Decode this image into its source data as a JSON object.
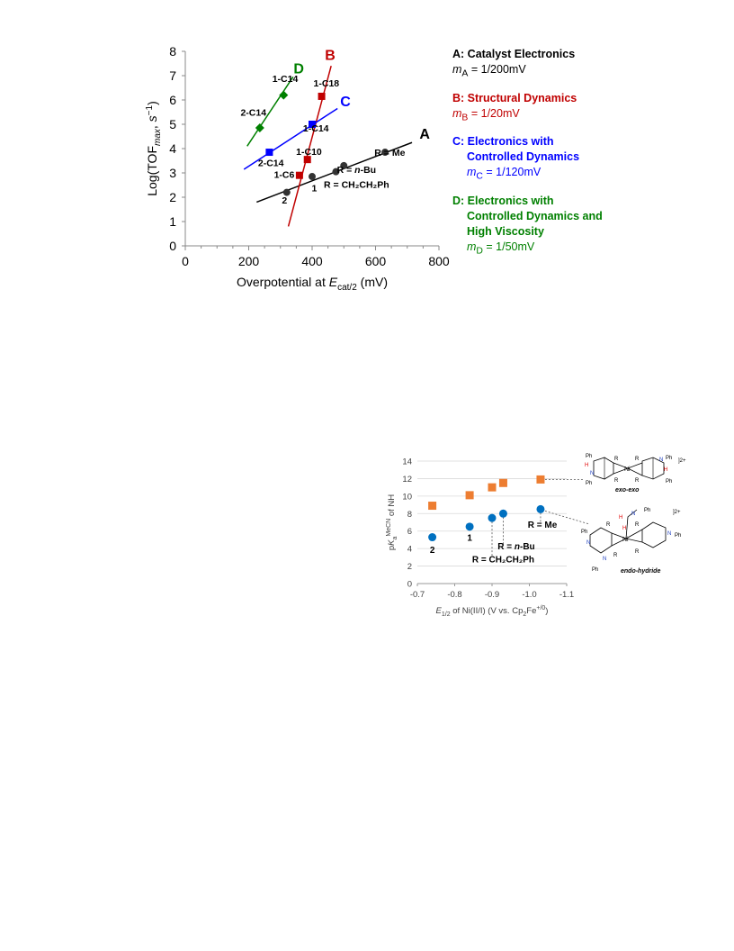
{
  "chart_data": [
    {
      "type": "scatter",
      "xlabel": "Overpotential at E",
      "xlabel_sub": "cat/2",
      "xlabel_unit": " (mV)",
      "ylabel": "Log(TOF",
      "ylabel_sub": "max",
      "ylabel_unit": ", s",
      "ylabel_sup": "−1",
      "ylabel_end": ")",
      "xlim": [
        0,
        800
      ],
      "ylim": [
        0,
        8
      ],
      "x_ticks": [
        "0",
        "200",
        "400",
        "600",
        "800"
      ],
      "y_ticks": [
        "0",
        "1",
        "2",
        "3",
        "4",
        "5",
        "6",
        "7",
        "8"
      ],
      "series": [
        {
          "name": "A",
          "color": "#000000",
          "marker": "circle",
          "points": [
            [
              320,
              2.2
            ],
            [
              400,
              2.85
            ],
            [
              475,
              3.05
            ],
            [
              500,
              3.3
            ],
            [
              630,
              3.85
            ]
          ],
          "fit": [
            [
              225,
              1.8
            ],
            [
              715,
              4.25
            ]
          ],
          "name_pos": [
            755,
            4.4
          ]
        },
        {
          "name": "B",
          "color": "#C00000",
          "marker": "square",
          "points": [
            [
              360,
              2.9
            ],
            [
              385,
              3.55
            ],
            [
              430,
              6.15
            ]
          ],
          "fit": [
            [
              325,
              0.8
            ],
            [
              460,
              7.4
            ]
          ],
          "name_pos": [
            457,
            7.65
          ]
        },
        {
          "name": "C",
          "color": "#0000FF",
          "marker": "square",
          "points": [
            [
              265,
              3.85
            ],
            [
              400,
              5.0
            ]
          ],
          "fit": [
            [
              185,
              3.15
            ],
            [
              480,
              5.65
            ]
          ],
          "name_pos": [
            505,
            5.75
          ]
        },
        {
          "name": "D",
          "color": "#008000",
          "marker": "diamond",
          "points": [
            [
              235,
              4.85
            ],
            [
              310,
              6.2
            ]
          ],
          "fit": [
            [
              195,
              4.1
            ],
            [
              340,
              6.95
            ]
          ],
          "name_pos": [
            358,
            7.1
          ]
        }
      ],
      "annotations": [
        {
          "text": "1-C14",
          "x": 315,
          "y": 6.75
        },
        {
          "text": "1-C18",
          "x": 445,
          "y": 6.55
        },
        {
          "text": "2-C14",
          "x": 215,
          "y": 5.35
        },
        {
          "text": "1-C14",
          "x": 412,
          "y": 4.7
        },
        {
          "text": "1-C10",
          "x": 390,
          "y": 3.75
        },
        {
          "text": "2-C14",
          "x": 270,
          "y": 3.28
        },
        {
          "text": "1-C6",
          "x": 312,
          "y": 2.8
        },
        {
          "text": "R = Me",
          "x": 645,
          "y": 3.7
        },
        {
          "text": "R = n-Bu",
          "x": 540,
          "y": 3.0
        },
        {
          "text": "R = CH₂CH₂Ph",
          "x": 540,
          "y": 2.38
        },
        {
          "text": "1",
          "x": 407,
          "y": 2.25
        },
        {
          "text": "2",
          "x": 313,
          "y": 1.75
        }
      ]
    },
    {
      "type": "scatter",
      "xlabel": "E",
      "xlabel_sub": "1/2",
      "xlabel_rest": " of Ni(II/I) (V vs. Cp",
      "xlabel_sub2": "2",
      "xlabel_rest2": "Fe",
      "xlabel_sup": "+/0",
      "xlabel_end": ")",
      "ylabel": "pK",
      "ylabel_sub": "a",
      "ylabel_sup": "MeCN",
      "ylabel_end": " of NH",
      "xlim": [
        -0.7,
        -1.1
      ],
      "ylim": [
        0,
        14
      ],
      "x_ticks": [
        "-0.7",
        "-0.8",
        "-0.9",
        "-1.0",
        "-1.1"
      ],
      "y_ticks": [
        "0",
        "2",
        "4",
        "6",
        "8",
        "10",
        "12",
        "14"
      ],
      "series": [
        {
          "name": "exo-exo",
          "color": "#ED7D31",
          "marker": "square",
          "x": [
            -0.74,
            -0.84,
            -0.9,
            -0.93,
            -1.03
          ],
          "values": [
            8.9,
            10.1,
            11.0,
            11.5,
            11.9
          ]
        },
        {
          "name": "endo-hydride",
          "color": "#0070C0",
          "marker": "circle",
          "x": [
            -0.74,
            -0.84,
            -0.9,
            -0.93,
            -1.03
          ],
          "values": [
            5.3,
            6.5,
            7.5,
            8.0,
            8.5
          ]
        }
      ],
      "annotations": [
        {
          "text": "2",
          "x": -0.74,
          "y": 3.5
        },
        {
          "text": "1",
          "x": -0.84,
          "y": 4.9
        },
        {
          "text": "R = Me",
          "x": -1.035,
          "y": 6.4
        },
        {
          "text": "R = n-Bu",
          "x": -0.965,
          "y": 3.9
        },
        {
          "text": "R = CH₂CH₂Ph",
          "x": -0.93,
          "y": 2.4
        }
      ],
      "structure_labels": {
        "exo": "exo-exo",
        "endo": "endo-hydride",
        "charge": "2+"
      }
    }
  ],
  "legend": [
    {
      "head": "A: Catalyst Electronics",
      "m_sub": "A",
      "m_val": " = 1/200mV",
      "color": "#000000",
      "lines": []
    },
    {
      "head": "B: Structural Dynamics",
      "m_sub": "B",
      "m_val": " = 1/20mV",
      "color": "#C00000",
      "lines": []
    },
    {
      "head": "C: Electronics with",
      "m_sub": "C",
      "m_val": " = 1/120mV",
      "color": "#0000FF",
      "lines": [
        "Controlled Dynamics"
      ]
    },
    {
      "head": "D: Electronics with",
      "m_sub": "D",
      "m_val": " = 1/50mV",
      "color": "#008000",
      "lines": [
        "Controlled Dynamics and",
        "High Viscosity"
      ]
    }
  ]
}
